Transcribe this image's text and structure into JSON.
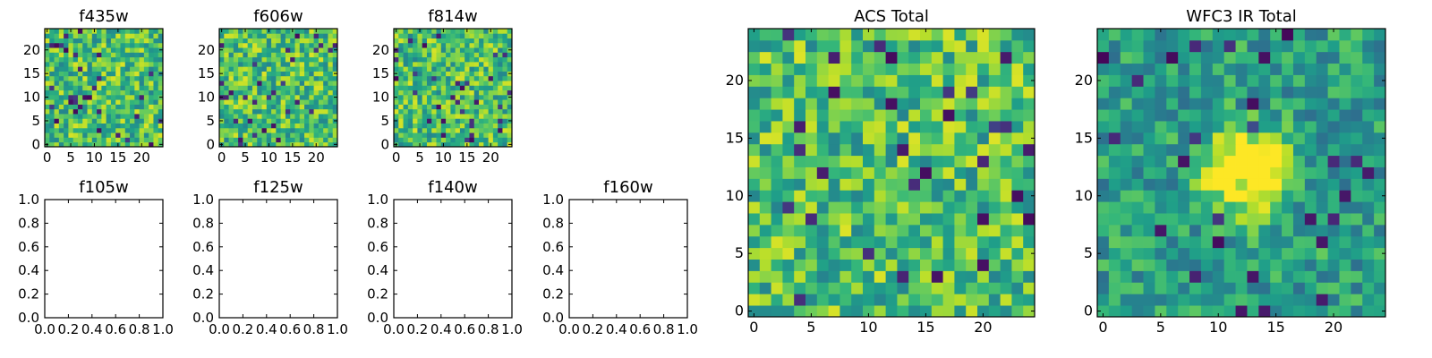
{
  "chart_data": [
    {
      "type": "heatmap",
      "title": "f435w",
      "grid_size": 25,
      "colormap": "viridis",
      "origin": "lower",
      "xticks": [
        "0",
        "5",
        "10",
        "15",
        "20"
      ],
      "yticks": [
        "0",
        "5",
        "10",
        "15",
        "20"
      ],
      "seed": 11
    },
    {
      "type": "heatmap",
      "title": "f606w",
      "grid_size": 25,
      "colormap": "viridis",
      "origin": "lower",
      "xticks": [
        "0",
        "5",
        "10",
        "15",
        "20"
      ],
      "yticks": [
        "0",
        "5",
        "10",
        "15",
        "20"
      ],
      "seed": 23
    },
    {
      "type": "heatmap",
      "title": "f814w",
      "grid_size": 25,
      "colormap": "viridis",
      "origin": "lower",
      "xticks": [
        "0",
        "5",
        "10",
        "15",
        "20"
      ],
      "yticks": [
        "0",
        "5",
        "10",
        "15",
        "20"
      ],
      "seed": 37
    },
    {
      "type": "empty",
      "title": "f105w",
      "xlim": [
        0,
        1
      ],
      "ylim": [
        0,
        1
      ],
      "xticks": [
        "0.0",
        "0.2",
        "0.4",
        "0.6",
        "0.8",
        "1.0"
      ],
      "yticks": [
        "0.0",
        "0.2",
        "0.4",
        "0.6",
        "0.8",
        "1.0"
      ]
    },
    {
      "type": "empty",
      "title": "f125w",
      "xlim": [
        0,
        1
      ],
      "ylim": [
        0,
        1
      ],
      "xticks": [
        "0.0",
        "0.2",
        "0.4",
        "0.6",
        "0.8",
        "1.0"
      ],
      "yticks": [
        "0.0",
        "0.2",
        "0.4",
        "0.6",
        "0.8",
        "1.0"
      ]
    },
    {
      "type": "empty",
      "title": "f140w",
      "xlim": [
        0,
        1
      ],
      "ylim": [
        0,
        1
      ],
      "xticks": [
        "0.0",
        "0.2",
        "0.4",
        "0.6",
        "0.8",
        "1.0"
      ],
      "yticks": [
        "0.0",
        "0.2",
        "0.4",
        "0.6",
        "0.8",
        "1.0"
      ]
    },
    {
      "type": "empty",
      "title": "f160w",
      "xlim": [
        0,
        1
      ],
      "ylim": [
        0,
        1
      ],
      "xticks": [
        "0.0",
        "0.2",
        "0.4",
        "0.6",
        "0.8",
        "1.0"
      ],
      "yticks": [
        "0.0",
        "0.2",
        "0.4",
        "0.6",
        "0.8",
        "1.0"
      ]
    },
    {
      "type": "heatmap",
      "title": "ACS Total",
      "grid_size": 25,
      "colormap": "viridis",
      "origin": "lower",
      "xticks": [
        "0",
        "5",
        "10",
        "15",
        "20"
      ],
      "yticks": [
        "0",
        "5",
        "10",
        "15",
        "20"
      ],
      "seed": 53
    },
    {
      "type": "heatmap",
      "title": "WFC3 IR Total",
      "grid_size": 25,
      "colormap": "viridis",
      "origin": "lower",
      "xticks": [
        "0",
        "5",
        "10",
        "15",
        "20"
      ],
      "yticks": [
        "0",
        "5",
        "10",
        "15",
        "20"
      ],
      "seed": 71,
      "bright_source": {
        "x": 12.5,
        "y": 12,
        "sigma": 2.2,
        "amplitude": 0.9
      }
    }
  ]
}
